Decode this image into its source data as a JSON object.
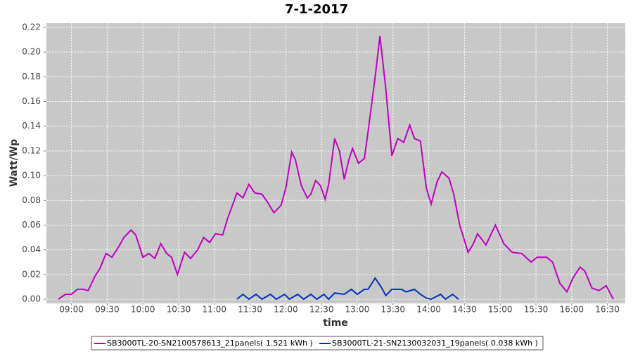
{
  "chart_data": {
    "type": "line",
    "title": "7-1-2017",
    "x_label": "time",
    "y_label": "Watt/Wp",
    "xlim": [
      "08:39",
      "16:45"
    ],
    "xticks": [
      "09:00",
      "09:30",
      "10:00",
      "10:30",
      "11:00",
      "11:30",
      "12:00",
      "12:30",
      "13:00",
      "13:30",
      "14:00",
      "14:30",
      "15:00",
      "15:30",
      "16:00",
      "16:30"
    ],
    "ylim": [
      -0.0034,
      0.2234
    ],
    "yticks": [
      {
        "value": 0,
        "label": "0.00"
      },
      {
        "value": 0.02,
        "label": "0.02"
      },
      {
        "value": 0.04,
        "label": "0.04"
      },
      {
        "value": 0.06,
        "label": "0.06"
      },
      {
        "value": 0.08,
        "label": "0.08"
      },
      {
        "value": 0.1,
        "label": "0.10"
      },
      {
        "value": 0.12,
        "label": "0.12"
      },
      {
        "value": 0.14,
        "label": "0.14"
      },
      {
        "value": 0.16,
        "label": "0.16"
      },
      {
        "value": 0.18,
        "label": "0.18"
      },
      {
        "value": 0.2,
        "label": "0.20"
      },
      {
        "value": 0.22,
        "label": "0.22"
      }
    ],
    "grid": true,
    "legend": "bottom",
    "series": [
      {
        "name": "SB3000TL-20-SN2100578613_21panels( 1.521 kWh )",
        "color": "#c000c0",
        "x": [
          "08:49",
          "08:55",
          "09:00",
          "09:05",
          "09:10",
          "09:14",
          "09:20",
          "09:24",
          "09:29",
          "09:34",
          "09:40",
          "09:44",
          "09:50",
          "09:54",
          "10:00",
          "10:05",
          "10:10",
          "10:15",
          "10:20",
          "10:24",
          "10:29",
          "10:35",
          "10:40",
          "10:46",
          "10:51",
          "10:56",
          "11:01",
          "11:07",
          "11:11",
          "11:19",
          "11:24",
          "11:29",
          "11:34",
          "11:40",
          "11:45",
          "11:50",
          "11:56",
          "12:00",
          "12:05",
          "12:08",
          "12:13",
          "12:18",
          "12:21",
          "12:25",
          "12:29",
          "12:33",
          "12:36",
          "12:41",
          "12:45",
          "12:49",
          "12:53",
          "12:56",
          "13:01",
          "13:06",
          "13:09",
          "13:15",
          "13:19",
          "13:24",
          "13:29",
          "13:34",
          "13:39",
          "13:44",
          "13:48",
          "13:53",
          "13:58",
          "14:02",
          "14:07",
          "14:11",
          "14:17",
          "14:21",
          "14:26",
          "14:33",
          "14:37",
          "14:41",
          "14:48",
          "14:56",
          "15:03",
          "15:10",
          "15:18",
          "15:26",
          "15:31",
          "15:39",
          "15:44",
          "15:50",
          "15:56",
          "16:01",
          "16:07",
          "16:11",
          "16:17",
          "16:23",
          "16:29",
          "16:35"
        ],
        "values": [
          0,
          0.004,
          0.004,
          0.008,
          0.008,
          0.007,
          0.019,
          0.025,
          0.037,
          0.034,
          0.043,
          0.05,
          0.056,
          0.052,
          0.034,
          0.037,
          0.033,
          0.045,
          0.037,
          0.034,
          0.02,
          0.038,
          0.033,
          0.04,
          0.05,
          0.046,
          0.053,
          0.052,
          0.065,
          0.086,
          0.082,
          0.093,
          0.086,
          0.085,
          0.078,
          0.07,
          0.076,
          0.09,
          0.119,
          0.113,
          0.092,
          0.082,
          0.085,
          0.096,
          0.092,
          0.081,
          0.093,
          0.13,
          0.12,
          0.097,
          0.113,
          0.122,
          0.11,
          0.114,
          0.135,
          0.18,
          0.213,
          0.17,
          0.116,
          0.13,
          0.127,
          0.141,
          0.13,
          0.128,
          0.09,
          0.077,
          0.095,
          0.103,
          0.098,
          0.085,
          0.06,
          0.038,
          0.044,
          0.053,
          0.044,
          0.06,
          0.045,
          0.038,
          0.037,
          0.03,
          0.034,
          0.034,
          0.03,
          0.013,
          0.006,
          0.017,
          0.026,
          0.023,
          0.009,
          0.007,
          0.011,
          0
        ]
      },
      {
        "name": "SB3000TL-21-SN2130032031_19panels( 0.038 kWh )",
        "color": "#0030c0",
        "x": [
          "11:19",
          "11:24",
          "11:29",
          "11:35",
          "11:40",
          "11:47",
          "11:52",
          "11:59",
          "12:03",
          "12:10",
          "12:15",
          "12:21",
          "12:26",
          "12:32",
          "12:36",
          "12:41",
          "12:49",
          "12:55",
          "13:00",
          "13:06",
          "13:09",
          "13:15",
          "13:20",
          "13:24",
          "13:29",
          "13:37",
          "13:41",
          "13:48",
          "13:53",
          "13:58",
          "14:02",
          "14:10",
          "14:14",
          "14:20",
          "14:25"
        ],
        "values": [
          0,
          0.004,
          0,
          0.004,
          0,
          0.004,
          0,
          0.004,
          0,
          0.004,
          0,
          0.004,
          0,
          0.004,
          0,
          0.005,
          0.004,
          0.008,
          0.004,
          0.008,
          0.008,
          0.017,
          0.01,
          0.003,
          0.008,
          0.008,
          0.006,
          0.008,
          0.004,
          0.001,
          0,
          0.004,
          0,
          0.004,
          0
        ]
      }
    ]
  }
}
